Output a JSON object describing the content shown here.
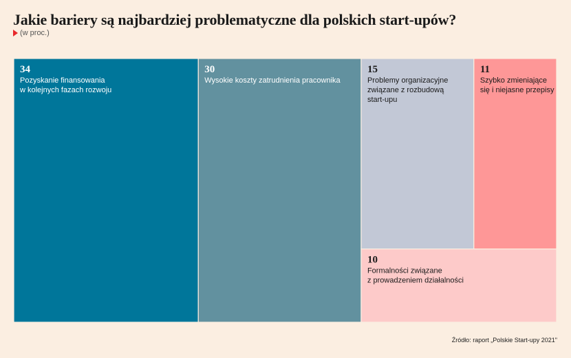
{
  "header": {
    "title": "Jakie bariery są najbardziej problematyczne dla polskich start-upów?",
    "subtitle": "(w proc.)"
  },
  "source": "Źródło: raport „Polskie Start-upy 2021\"",
  "colors": {
    "background": "#fbeee1",
    "accent": "#e8282b"
  },
  "chart_data": {
    "type": "treemap",
    "cells": [
      {
        "value": 34,
        "label_lines": [
          "Pozyskanie finansowania",
          "w kolejnych fazach rozwoju"
        ],
        "color": "#00769a",
        "text_color": "#ffffff"
      },
      {
        "value": 30,
        "label_lines": [
          "Wysokie koszty zatrudnienia pracownika"
        ],
        "color": "#62919f",
        "text_color": "#ffffff"
      },
      {
        "value": 15,
        "label_lines": [
          "Problemy organizacyjne",
          "związane z rozbudową",
          "start-upu"
        ],
        "color": "#c2c8d6",
        "text_color": "#1a1a1a"
      },
      {
        "value": 11,
        "label_lines": [
          "Szybko zmieniające",
          "się i niejasne przepisy"
        ],
        "color": "#fe9797",
        "text_color": "#1a1a1a"
      },
      {
        "value": 10,
        "label_lines": [
          "Formalności związane",
          "z prowadzeniem działalności"
        ],
        "color": "#fdcac9",
        "text_color": "#1a1a1a"
      }
    ]
  }
}
